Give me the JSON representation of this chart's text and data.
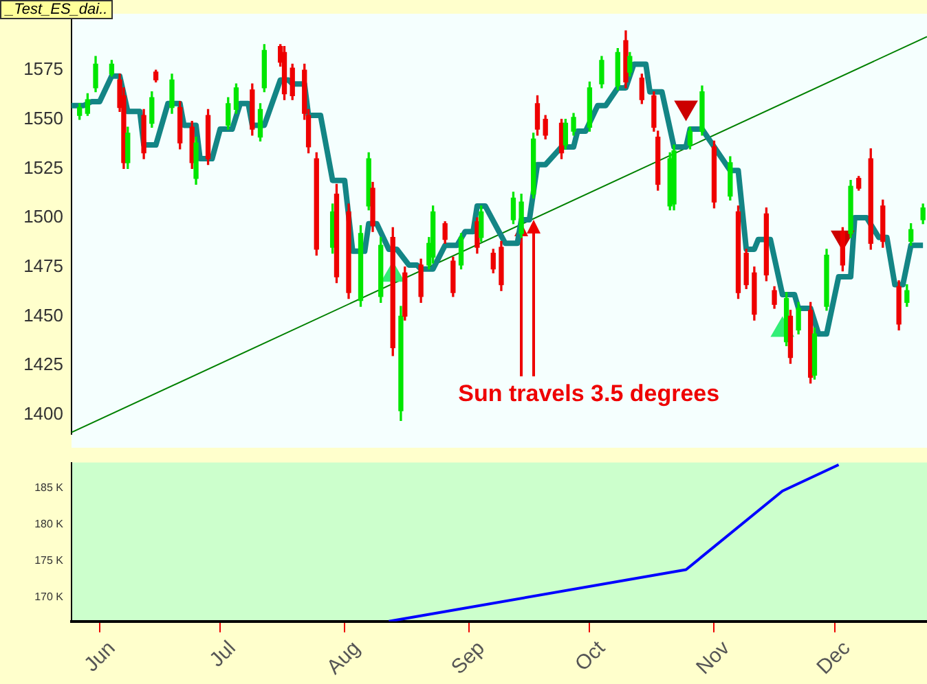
{
  "chart_data": [
    {
      "type": "candlestick",
      "title": "_Test_ES_dai..",
      "tick_labels": "y",
      "xlim": [
        "--05-25",
        "--12-24"
      ],
      "ylim": [
        1390,
        1601
      ],
      "yticks": [
        1400,
        1425,
        1450,
        1475,
        1500,
        1525,
        1550,
        1575
      ],
      "annotations": [
        "Sun travels 3.5 degrees"
      ],
      "x": [
        "--05-27",
        "--05-29",
        "--05-31",
        "--06-04",
        "--06-06",
        "--06-07",
        "--06-08",
        "--06-12",
        "--06-14",
        "--06-15",
        "--06-19",
        "--06-21",
        "--06-24",
        "--06-25",
        "--06-28",
        "--07-03",
        "--07-05",
        "--07-09",
        "--07-11",
        "--07-12",
        "--07-16",
        "--07-17",
        "--07-19",
        "--07-22",
        "--07-23",
        "--07-25",
        "--07-29",
        "--07-30",
        "--08-02",
        "--08-05",
        "--08-07",
        "--08-08",
        "--08-10",
        "--08-13",
        "--08-15",
        "--08-16",
        "--08-20",
        "--08-22",
        "--08-23",
        "--08-26",
        "--08-28",
        "--08-30",
        "--09-03",
        "--09-04",
        "--09-07",
        "--09-09",
        "--09-12",
        "--09-14",
        "--09-17",
        "--09-18",
        "--09-20",
        "--09-24",
        "--09-25",
        "--09-27",
        "--10-01",
        "--10-04",
        "--10-08",
        "--10-10",
        "--10-11",
        "--10-14",
        "--10-17",
        "--10-18",
        "--10-21",
        "--10-22",
        "--10-26",
        "--10-29",
        "--11-01",
        "--11-05",
        "--11-07",
        "--11-09",
        "--11-11",
        "--11-14",
        "--11-16",
        "--11-19",
        "--11-20",
        "--11-22",
        "--11-25",
        "--11-26",
        "--11-29",
        "--12-03",
        "--12-05",
        "--12-07",
        "--12-10",
        "--12-13",
        "--12-17",
        "--12-19",
        "--12-20",
        "--12-23"
      ],
      "ohlc": [
        [
          1552,
          1558,
          1550,
          1556
        ],
        [
          1553,
          1563,
          1552,
          1560
        ],
        [
          1566,
          1582,
          1564,
          1578
        ],
        [
          1573,
          1580,
          1572,
          1578
        ],
        [
          1570,
          1573,
          1554,
          1556
        ],
        [
          1562,
          1566,
          1525,
          1528
        ],
        [
          1528,
          1546,
          1525,
          1543
        ],
        [
          1552,
          1555,
          1530,
          1533
        ],
        [
          1548,
          1564,
          1546,
          1561
        ],
        [
          1574,
          1575,
          1569,
          1570
        ],
        [
          1556,
          1573,
          1553,
          1570
        ],
        [
          1556,
          1559,
          1535,
          1538
        ],
        [
          1546,
          1549,
          1525,
          1528
        ],
        [
          1520,
          1541,
          1517,
          1538
        ],
        [
          1552,
          1555,
          1527,
          1530
        ],
        [
          1547,
          1561,
          1545,
          1558
        ],
        [
          1555,
          1568,
          1553,
          1566
        ],
        [
          1565,
          1568,
          1542,
          1545
        ],
        [
          1541,
          1558,
          1539,
          1555
        ],
        [
          1566,
          1588,
          1564,
          1585
        ],
        [
          1587,
          1588,
          1577,
          1579
        ],
        [
          1584,
          1587,
          1560,
          1563
        ],
        [
          1576,
          1578,
          1560,
          1562
        ],
        [
          1575,
          1578,
          1550,
          1553
        ],
        [
          1552,
          1555,
          1533,
          1536
        ],
        [
          1530,
          1533,
          1481,
          1484
        ],
        [
          1485,
          1507,
          1482,
          1503
        ],
        [
          1512,
          1517,
          1467,
          1470
        ],
        [
          1503,
          1507,
          1459,
          1462
        ],
        [
          1458,
          1496,
          1455,
          1492
        ],
        [
          1506,
          1533,
          1504,
          1530
        ],
        [
          1515,
          1518,
          1493,
          1496
        ],
        [
          1460,
          1490,
          1457,
          1486
        ],
        [
          1490,
          1495,
          1430,
          1434
        ],
        [
          1402,
          1455,
          1397,
          1450
        ],
        [
          1472,
          1475,
          1448,
          1450
        ],
        [
          1476,
          1479,
          1457,
          1460
        ],
        [
          1476,
          1490,
          1474,
          1487
        ],
        [
          1480,
          1506,
          1477,
          1503
        ],
        [
          1497,
          1498,
          1487,
          1489
        ],
        [
          1478,
          1480,
          1460,
          1462
        ],
        [
          1476,
          1492,
          1474,
          1490
        ],
        [
          1498,
          1500,
          1482,
          1485
        ],
        [
          1490,
          1506,
          1488,
          1503
        ],
        [
          1482,
          1484,
          1472,
          1474
        ],
        [
          1485,
          1488,
          1463,
          1466
        ],
        [
          1499,
          1513,
          1497,
          1510
        ],
        [
          1492,
          1512,
          1490,
          1508
        ],
        [
          1512,
          1543,
          1510,
          1540
        ],
        [
          1558,
          1562,
          1542,
          1545
        ],
        [
          1550,
          1552,
          1540,
          1542
        ],
        [
          1548,
          1550,
          1530,
          1533
        ],
        [
          1537,
          1550,
          1535,
          1548
        ],
        [
          1544,
          1553,
          1542,
          1551
        ],
        [
          1546,
          1569,
          1544,
          1566
        ],
        [
          1568,
          1582,
          1566,
          1580
        ],
        [
          1567,
          1586,
          1565,
          1584
        ],
        [
          1590,
          1595,
          1566,
          1569
        ],
        [
          1574,
          1584,
          1572,
          1582
        ],
        [
          1571,
          1573,
          1558,
          1560
        ],
        [
          1562,
          1564,
          1544,
          1546
        ],
        [
          1541,
          1544,
          1514,
          1517
        ],
        [
          1506,
          1533,
          1504,
          1530
        ],
        [
          1507,
          1537,
          1504,
          1534
        ],
        [
          1537,
          1546,
          1535,
          1544
        ],
        [
          1544,
          1567,
          1542,
          1564
        ],
        [
          1536,
          1539,
          1505,
          1508
        ],
        [
          1511,
          1531,
          1509,
          1528
        ],
        [
          1503,
          1506,
          1459,
          1462
        ],
        [
          1482,
          1484,
          1464,
          1466
        ],
        [
          1472,
          1475,
          1448,
          1451
        ],
        [
          1502,
          1505,
          1468,
          1471
        ],
        [
          1463,
          1465,
          1454,
          1456
        ],
        [
          1437,
          1462,
          1435,
          1459
        ],
        [
          1450,
          1453,
          1426,
          1429
        ],
        [
          1443,
          1457,
          1441,
          1454
        ],
        [
          1453,
          1457,
          1416,
          1419
        ],
        [
          1420,
          1444,
          1418,
          1441
        ],
        [
          1455,
          1484,
          1453,
          1481
        ],
        [
          1493,
          1495,
          1473,
          1476
        ],
        [
          1492,
          1519,
          1490,
          1516
        ],
        [
          1520,
          1521,
          1514,
          1515
        ],
        [
          1530,
          1535,
          1484,
          1487
        ],
        [
          1506,
          1509,
          1485,
          1488
        ],
        [
          1465,
          1468,
          1443,
          1446
        ],
        [
          1457,
          1466,
          1455,
          1463
        ],
        [
          1488,
          1497,
          1486,
          1494
        ],
        [
          1499,
          1507,
          1497,
          1505
        ]
      ],
      "colors": [
        "#00e600",
        "#00e600",
        "#00e600",
        "#00e600",
        "#ee0000",
        "#ee0000",
        "#00e600",
        "#ee0000",
        "#00e600",
        "#ee0000",
        "#00e600",
        "#ee0000",
        "#ee0000",
        "#00e600",
        "#ee0000",
        "#00e600",
        "#00e600",
        "#ee0000",
        "#00e600",
        "#00e600",
        "#ee0000",
        "#ee0000",
        "#ee0000",
        "#ee0000",
        "#ee0000",
        "#ee0000",
        "#00e600",
        "#ee0000",
        "#ee0000",
        "#00e600",
        "#00e600",
        "#ee0000",
        "#00e600",
        "#ee0000",
        "#00e600",
        "#ee0000",
        "#ee0000",
        "#00e600",
        "#00e600",
        "#ee0000",
        "#ee0000",
        "#00e600",
        "#ee0000",
        "#00e600",
        "#ee0000",
        "#ee0000",
        "#00e600",
        "#00e600",
        "#00e600",
        "#ee0000",
        "#ee0000",
        "#ee0000",
        "#00e600",
        "#00e600",
        "#00e600",
        "#00e600",
        "#00e600",
        "#ee0000",
        "#00e600",
        "#ee0000",
        "#ee0000",
        "#ee0000",
        "#00e600",
        "#00e600",
        "#00e600",
        "#00e600",
        "#ee0000",
        "#00e600",
        "#ee0000",
        "#ee0000",
        "#ee0000",
        "#ee0000",
        "#ee0000",
        "#00e600",
        "#ee0000",
        "#00e600",
        "#ee0000",
        "#00e600",
        "#00e600",
        "#ee0000",
        "#00e600",
        "#ee0000",
        "#ee0000",
        "#ee0000",
        "#ee0000",
        "#00e600",
        "#00e600",
        "#00e600"
      ],
      "series": [
        {
          "type": "line",
          "color": "#138585",
          "x": [
            "--05-25",
            "--05-28",
            "--05-30",
            "--06-01",
            "--06-04",
            "--06-06",
            "--06-08",
            "--06-11",
            "--06-12",
            "--06-15",
            "--06-18",
            "--06-21",
            "--06-22",
            "--06-25",
            "--06-26",
            "--06-29",
            "--07-01",
            "--07-04",
            "--07-06",
            "--07-08",
            "--07-09",
            "--07-12",
            "--07-16",
            "--07-18",
            "--07-19",
            "--07-22",
            "--07-23",
            "--07-26",
            "--07-29",
            "--08-01",
            "--08-03",
            "--08-06",
            "--08-07",
            "--08-09",
            "--08-12",
            "--08-14",
            "--08-17",
            "--08-19",
            "--08-20",
            "--08-23",
            "--08-26",
            "--08-29",
            "--08-31",
            "--09-02",
            "--09-03",
            "--09-05",
            "--09-10",
            "--09-13",
            "--09-14",
            "--09-16",
            "--09-18",
            "--09-20",
            "--09-24",
            "--09-27",
            "--09-28",
            "--09-30",
            "--10-03",
            "--10-05",
            "--10-08",
            "--10-10",
            "--10-12",
            "--10-15",
            "--10-16",
            "--10-19",
            "--10-22",
            "--10-25",
            "--10-26",
            "--10-29",
            "--11-05",
            "--11-07",
            "--11-09",
            "--11-11",
            "--11-12",
            "--11-15",
            "--11-18",
            "--11-21",
            "--11-22",
            "--11-25",
            "--11-27",
            "--11-29",
            "--12-02",
            "--12-05",
            "--12-06",
            "--12-09",
            "--12-12",
            "--12-14",
            "--12-16",
            "--12-18",
            "--12-20",
            "--12-23"
          ],
          "values": [
            1557,
            1557,
            1559,
            1559,
            1572,
            1572,
            1554,
            1554,
            1537,
            1537,
            1558,
            1558,
            1547,
            1547,
            1530,
            1530,
            1545,
            1545,
            1558,
            1558,
            1547,
            1547,
            1570,
            1570,
            1568,
            1568,
            1552,
            1552,
            1519,
            1519,
            1483,
            1483,
            1497,
            1497,
            1484,
            1484,
            1476,
            1476,
            1474,
            1474,
            1486,
            1486,
            1493,
            1493,
            1506,
            1506,
            1487,
            1487,
            1499,
            1499,
            1527,
            1527,
            1536,
            1536,
            1544,
            1544,
            1557,
            1557,
            1566,
            1566,
            1578,
            1578,
            1564,
            1564,
            1536,
            1536,
            1545,
            1545,
            1524,
            1524,
            1484,
            1484,
            1489,
            1489,
            1461,
            1461,
            1454,
            1454,
            1441,
            1441,
            1470,
            1470,
            1500,
            1500,
            1490,
            1490,
            1466,
            1466,
            1486,
            1486
          ]
        },
        {
          "type": "line",
          "color": "#008000",
          "x": [
            "--05-25",
            "--12-24"
          ],
          "values": [
            1391,
            1592
          ]
        },
        {
          "type": "scatter",
          "marker": "triangle",
          "color": "#33ee77",
          "x": [
            "--08-13",
            "--11-18"
          ],
          "values": [
            1471,
            1443
          ]
        },
        {
          "type": "scatter",
          "marker": "triangle",
          "color": "#cc0000",
          "x": [
            "--10-25",
            "--12-03"
          ],
          "values": [
            1556,
            1490
          ]
        }
      ]
    },
    {
      "type": "line",
      "color": "#0000ff",
      "xlim": [
        "--05-25",
        "--12-24"
      ],
      "ylim": [
        166700,
        188500
      ],
      "yticks": [
        {
          "value": 170000,
          "label": "170 K"
        },
        {
          "value": 175000,
          "label": "175 K"
        },
        {
          "value": 180000,
          "label": "180 K"
        },
        {
          "value": 185000,
          "label": "185 K"
        }
      ],
      "xticks": [
        {
          "value": "--06-01",
          "label": "Jun"
        },
        {
          "value": "--07-01",
          "label": "Jul"
        },
        {
          "value": "--08-01",
          "label": "Aug"
        },
        {
          "value": "--09-01",
          "label": "Sep"
        },
        {
          "value": "--10-01",
          "label": "Oct"
        },
        {
          "value": "--11-01",
          "label": "Nov"
        },
        {
          "value": "--12-01",
          "label": "Dec"
        }
      ],
      "x": [
        "--08-12",
        "--10-25",
        "--11-18",
        "--12-02"
      ],
      "values": [
        166700,
        173800,
        184600,
        188200
      ]
    }
  ]
}
